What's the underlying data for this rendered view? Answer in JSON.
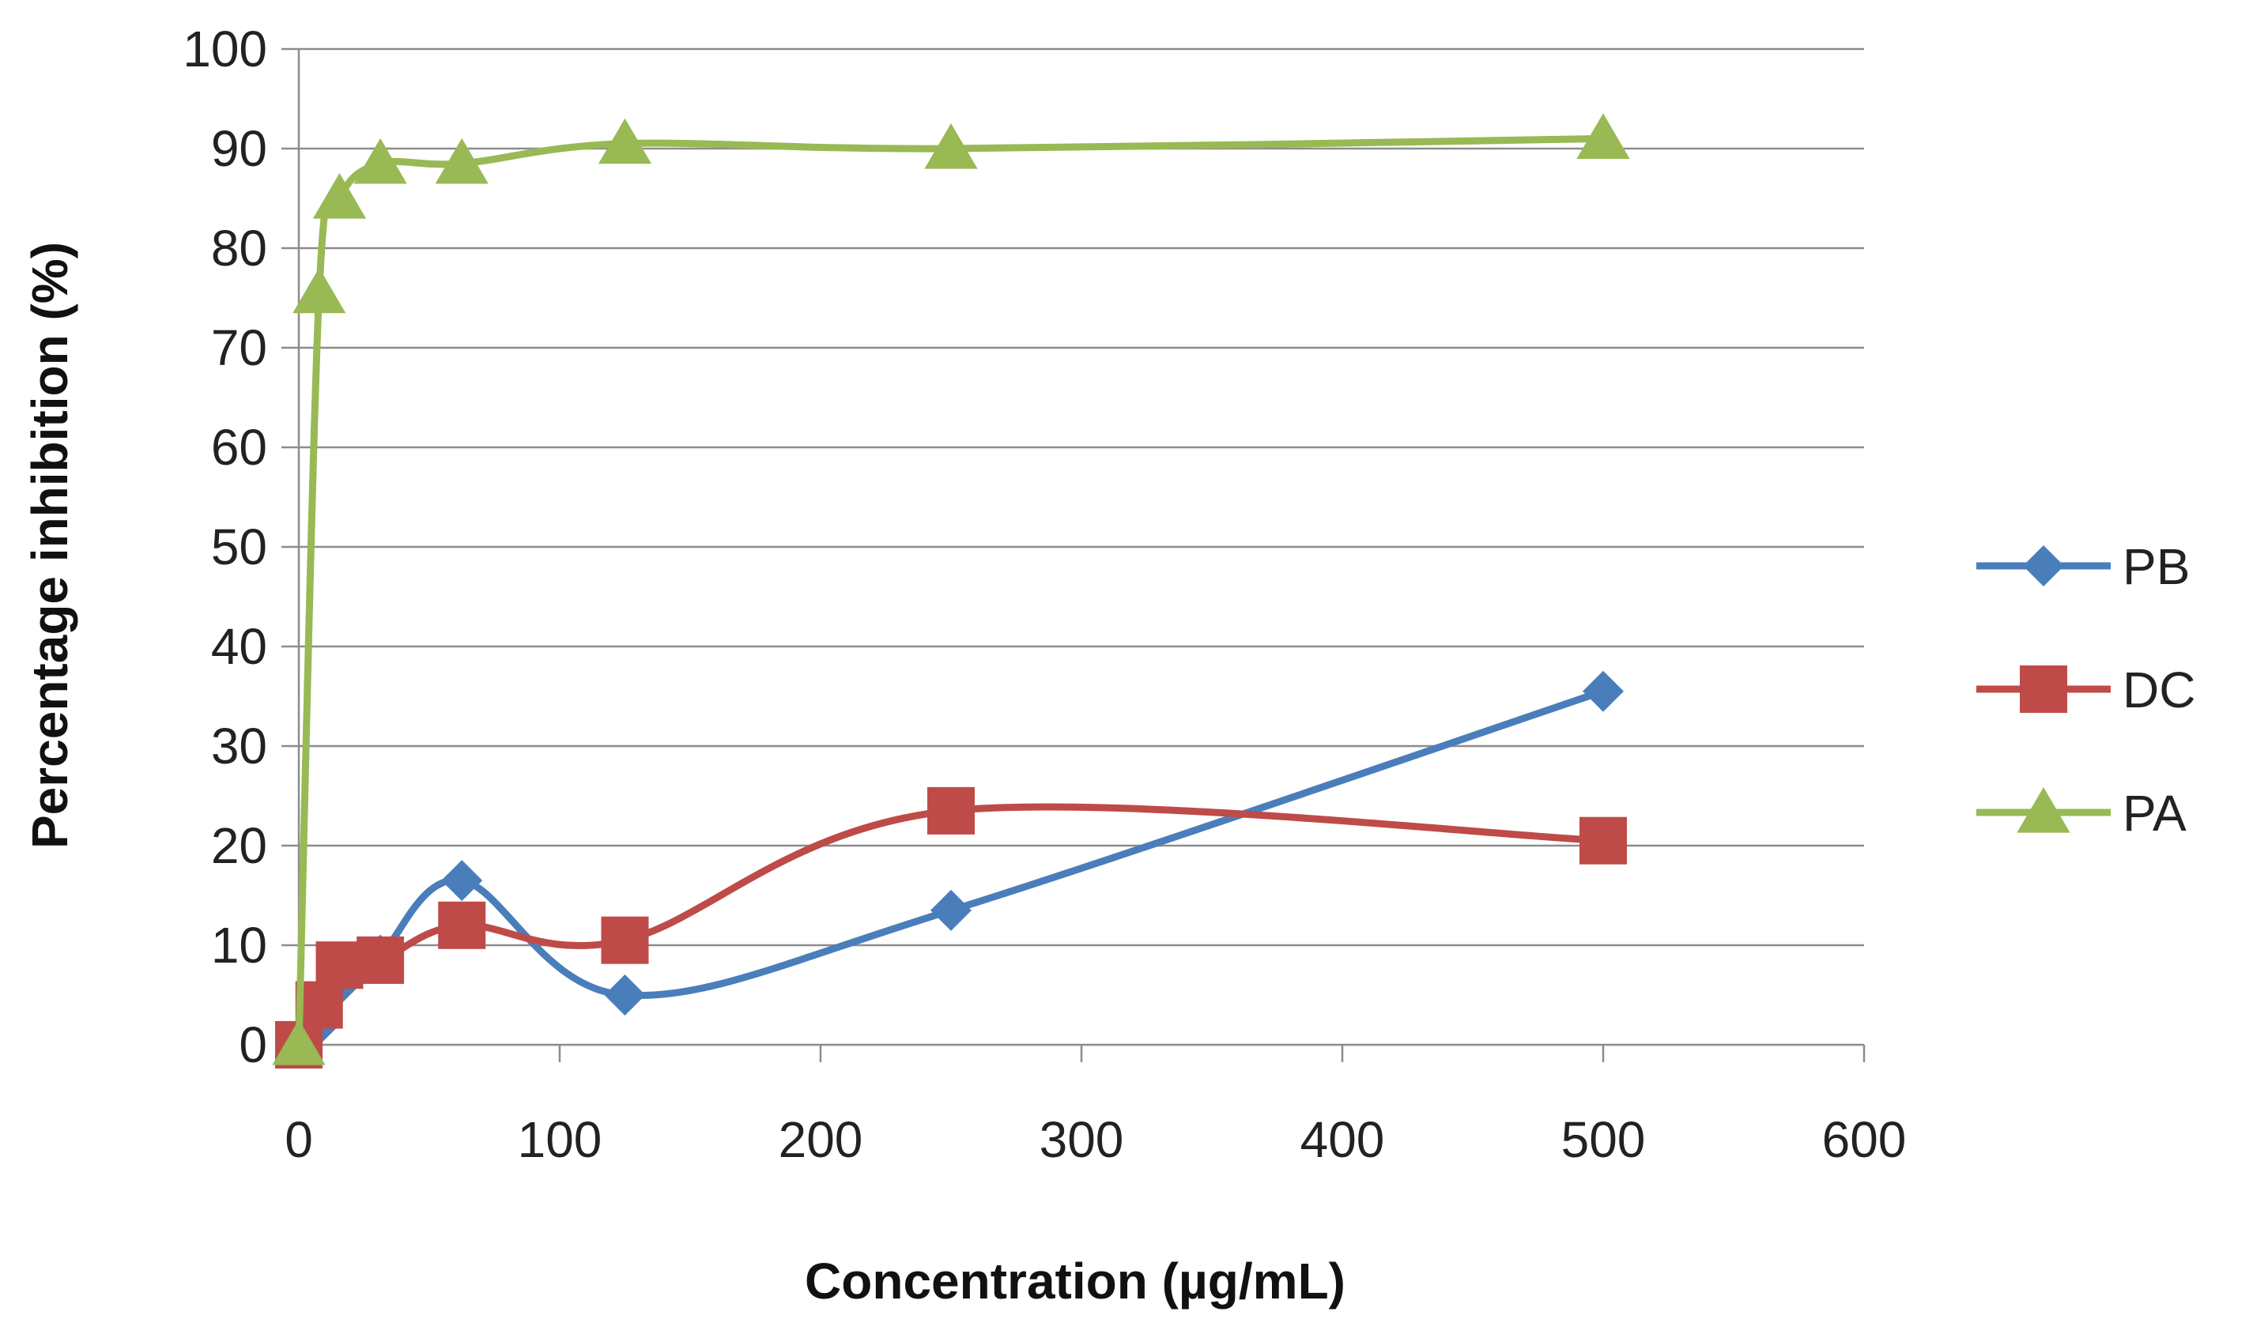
{
  "chart_data": {
    "type": "line",
    "title": "",
    "xlabel": "Concentration (µg/mL)",
    "ylabel": "Percentage inhibition (%)",
    "xlim": [
      0,
      600
    ],
    "ylim": [
      0,
      100
    ],
    "xticks": [
      0,
      100,
      200,
      300,
      400,
      500,
      600
    ],
    "yticks": [
      0,
      10,
      20,
      30,
      40,
      50,
      60,
      70,
      80,
      90,
      100
    ],
    "grid": "horizontal",
    "legend_position": "right",
    "smooth": true,
    "series": [
      {
        "name": "PB",
        "color": "#4a7ebb",
        "marker": "diamond",
        "x": [
          0,
          7.8,
          15.6,
          31.25,
          62.5,
          125,
          250,
          500
        ],
        "y": [
          0,
          2,
          6,
          9,
          16.5,
          5,
          13.5,
          35.5
        ]
      },
      {
        "name": "DC",
        "color": "#be4b48",
        "marker": "square",
        "x": [
          0,
          7.8,
          15.6,
          31.25,
          62.5,
          125,
          250,
          500
        ],
        "y": [
          0,
          4,
          8,
          8.5,
          12,
          10.5,
          23.5,
          20.5
        ]
      },
      {
        "name": "PA",
        "color": "#98b954",
        "marker": "triangle",
        "x": [
          0,
          7.8,
          15.6,
          31.25,
          62.5,
          125,
          250,
          500
        ],
        "y": [
          0,
          75.5,
          85,
          88.5,
          88.5,
          90.5,
          90,
          91
        ]
      }
    ]
  }
}
